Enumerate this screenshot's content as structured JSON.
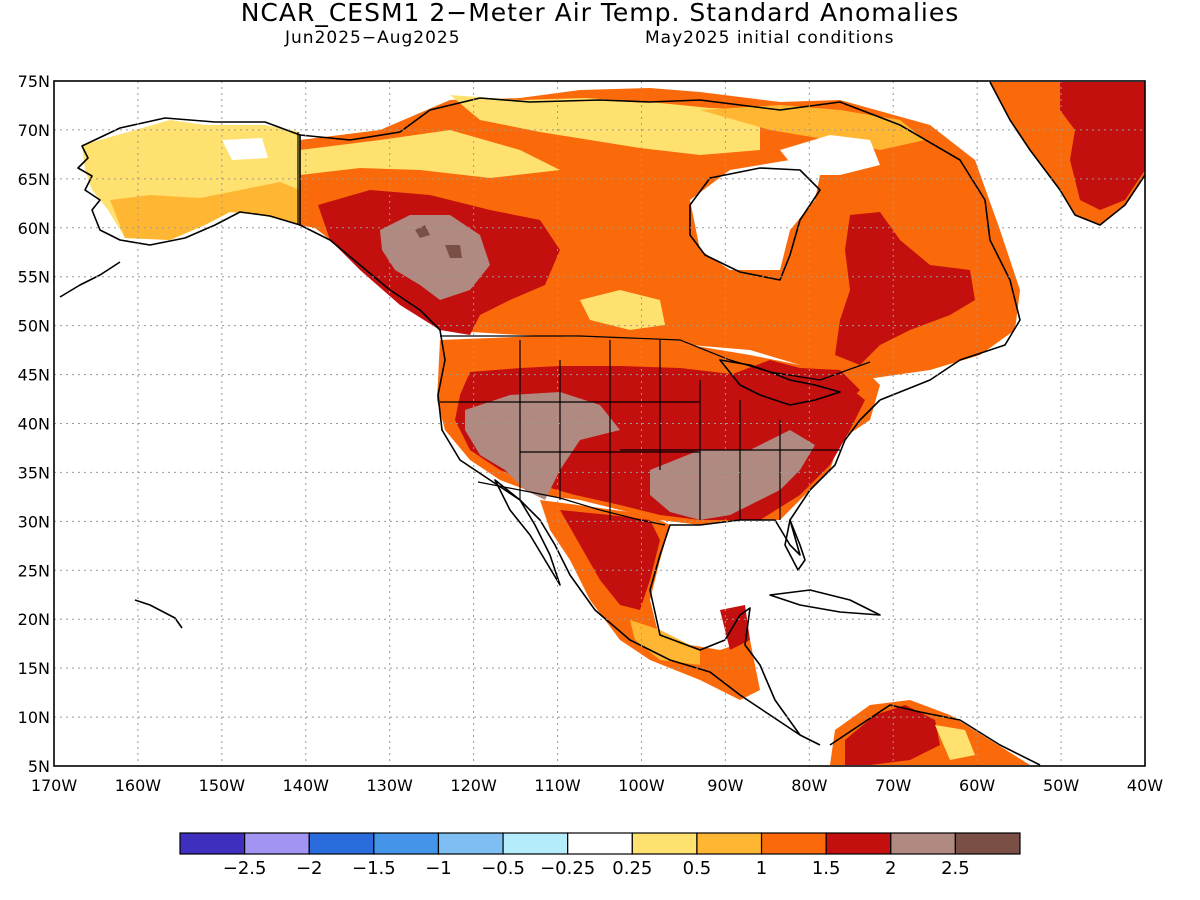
{
  "title": "NCAR_CESM1 2−Meter Air Temp. Standard Anomalies",
  "subtitle_left": "Jun2025−Aug2025",
  "subtitle_right": "May2025 initial conditions",
  "map": {
    "lat_range": [
      5,
      75
    ],
    "lon_range": [
      -170,
      -40
    ],
    "lat_labels": [
      "75N",
      "70N",
      "65N",
      "60N",
      "55N",
      "50N",
      "45N",
      "40N",
      "35N",
      "30N",
      "25N",
      "20N",
      "15N",
      "10N",
      "5N"
    ],
    "lon_labels": [
      "170W",
      "160W",
      "150W",
      "140W",
      "130W",
      "120W",
      "110W",
      "100W",
      "90W",
      "80W",
      "70W",
      "60W",
      "50W",
      "40W"
    ],
    "gridlines": "dotted",
    "regions": [
      {
        "name": "Alaska interior",
        "category": "0.25–0.5"
      },
      {
        "name": "Western Canada / Yukon",
        "category": "1–1.5"
      },
      {
        "name": "British Columbia interior",
        "category": ">2.5"
      },
      {
        "name": "Prairie Canada",
        "category": "1.5–2"
      },
      {
        "name": "Canadian Arctic",
        "category": "1–1.5"
      },
      {
        "name": "Hudson Bay",
        "category": "-0.25–0.25"
      },
      {
        "name": "Quebec / Labrador",
        "category": "1.5–2"
      },
      {
        "name": "Greenland",
        "category": "1.5–2"
      },
      {
        "name": "US West / Great Basin",
        "category": "2–2.5"
      },
      {
        "name": "US Central Plains",
        "category": "1.5–2"
      },
      {
        "name": "US Southeast",
        "category": "2–2.5"
      },
      {
        "name": "US Northeast",
        "category": "1.5–2"
      },
      {
        "name": "Mexico",
        "category": "1.5–2"
      },
      {
        "name": "Central America",
        "category": "1–1.5"
      },
      {
        "name": "Northern South America",
        "category": "1.5–2"
      }
    ]
  },
  "colorbar": {
    "colors": [
      "#3f2fbf",
      "#a294f2",
      "#2a6cdc",
      "#4495e9",
      "#7ebef2",
      "#b5ecfb",
      "#ffffff",
      "#ffe170",
      "#ffb733",
      "#fa6a0a",
      "#c30f0e",
      "#b08a80",
      "#7a5046"
    ],
    "labels": [
      "−2.5",
      "−2",
      "−1.5",
      "−1",
      "−0.5",
      "−0.25",
      "0.25",
      "0.5",
      "1",
      "1.5",
      "2",
      "2.5"
    ]
  }
}
